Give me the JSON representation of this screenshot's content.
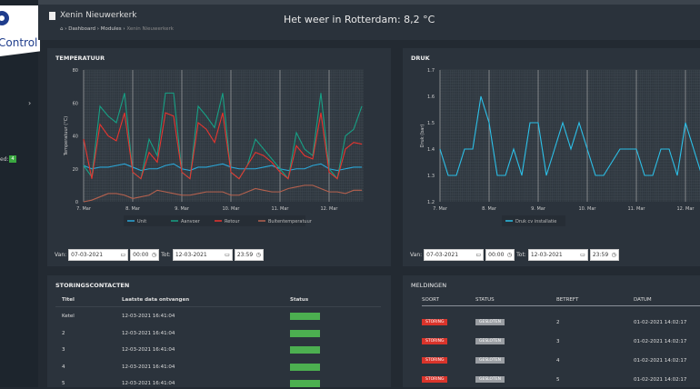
{
  "app": {
    "logo_text": "Control",
    "sidebar_badge": "4",
    "sidebar_label": "ed:"
  },
  "header": {
    "title": "Xenin Nieuwerkerk",
    "breadcrumb": [
      "Dashboard",
      "Modules",
      "Xenin Nieuwerkerk"
    ],
    "weather": "Het weer in Rotterdam: 8,2 °C"
  },
  "temp_panel": {
    "title": "TEMPERATUUR",
    "from_label": "Van:",
    "from_date": "07-03-2021",
    "from_time": "00:00",
    "to_label": "Tot:",
    "to_date": "12-03-2021",
    "to_time": "23:59"
  },
  "druk_panel": {
    "title": "DRUK",
    "from_label": "Van:",
    "from_date": "07-03-2021",
    "from_time": "00:00",
    "to_label": "Tot:",
    "to_date": "12-03-2021",
    "to_time": "23:59"
  },
  "storing": {
    "title": "STORINGSCONTACTEN",
    "headers": [
      "Titel",
      "Laatste data ontvangen",
      "Status"
    ],
    "rows": [
      {
        "titel": "Ketel",
        "date": "12-03-2021 16:41:04",
        "status": "ok"
      },
      {
        "titel": "2",
        "date": "12-03-2021 16:41:04",
        "status": "ok"
      },
      {
        "titel": "3",
        "date": "12-03-2021 16:41:04",
        "status": "ok"
      },
      {
        "titel": "4",
        "date": "12-03-2021 16:41:04",
        "status": "ok"
      },
      {
        "titel": "5",
        "date": "12-03-2021 16:41:04",
        "status": "ok"
      }
    ],
    "status_color": "#4caf50"
  },
  "meldingen": {
    "title": "MELDINGEN",
    "headers": [
      "SOORT",
      "STATUS",
      "BETREFT",
      "DATUM"
    ],
    "rows": [
      {
        "soort": "STORING",
        "status": "GESLOTEN",
        "betreft": "2",
        "datum": "01-02-2021 14:02:17"
      },
      {
        "soort": "STORING",
        "status": "GESLOTEN",
        "betreft": "3",
        "datum": "01-02-2021 14:02:17"
      },
      {
        "soort": "STORING",
        "status": "GESLOTEN",
        "betreft": "4",
        "datum": "01-02-2021 14:02:17"
      },
      {
        "soort": "STORING",
        "status": "GESLOTEN",
        "betreft": "5",
        "datum": "01-02-2021 14:02:17"
      }
    ]
  },
  "chart_data": [
    {
      "type": "line",
      "ylabel": "Temperatuur (°C)",
      "ylim": [
        0,
        80
      ],
      "yticks": [
        0,
        20,
        40,
        60,
        80
      ],
      "xticks": [
        "7. Mar",
        "8. Mar",
        "9. Mar",
        "10. Mar",
        "11. Mar",
        "12. Mar"
      ],
      "grid": true,
      "legend": "bottom",
      "x_start": "2021-03-07T00:00",
      "x_step_hours": 4,
      "series": [
        {
          "name": "Unit",
          "color": "#2aa7d8",
          "values": [
            22,
            20,
            21,
            21,
            22,
            23,
            21,
            19,
            20,
            20,
            22,
            23,
            20,
            19,
            21,
            21,
            22,
            23,
            21,
            20,
            20,
            20,
            21,
            22,
            20,
            19,
            20,
            20,
            22,
            23,
            20,
            19,
            20,
            21,
            21
          ]
        },
        {
          "name": "Aanvoer",
          "color": "#17a085",
          "values": [
            22,
            15,
            58,
            52,
            48,
            66,
            18,
            14,
            38,
            28,
            66,
            66,
            18,
            14,
            58,
            52,
            45,
            66,
            18,
            14,
            22,
            38,
            32,
            26,
            20,
            14,
            42,
            32,
            28,
            66,
            20,
            14,
            40,
            44,
            58
          ]
        },
        {
          "name": "Retour",
          "color": "#e8352f",
          "values": [
            38,
            14,
            47,
            40,
            37,
            54,
            18,
            14,
            30,
            24,
            54,
            52,
            18,
            14,
            48,
            44,
            36,
            54,
            18,
            14,
            22,
            30,
            28,
            24,
            18,
            14,
            34,
            28,
            26,
            54,
            18,
            14,
            32,
            36,
            35
          ]
        },
        {
          "name": "Buitentemperatuur",
          "color": "#b5614e",
          "values": [
            0,
            1,
            3,
            5,
            5,
            4,
            2,
            3,
            4,
            7,
            6,
            5,
            4,
            4,
            5,
            6,
            6,
            6,
            4,
            4,
            6,
            8,
            7,
            6,
            6,
            8,
            9,
            10,
            10,
            8,
            6,
            6,
            5,
            7,
            7
          ]
        }
      ]
    },
    {
      "type": "line",
      "ylabel": "Druk (bar)",
      "ylim": [
        1.2,
        1.7
      ],
      "yticks": [
        1.2,
        1.3,
        1.4,
        1.5,
        1.6,
        1.7
      ],
      "xticks": [
        "7. Mar",
        "8. Mar",
        "9. Mar",
        "10. Mar",
        "11. Mar",
        "12. Mar"
      ],
      "grid": true,
      "legend": "bottom",
      "x_start": "2021-03-07T00:00",
      "x_step_hours": 4,
      "series": [
        {
          "name": "Druk cv installatie",
          "color": "#2cc0e8",
          "values": [
            1.4,
            1.3,
            1.3,
            1.4,
            1.4,
            1.6,
            1.5,
            1.3,
            1.3,
            1.4,
            1.3,
            1.5,
            1.5,
            1.3,
            1.4,
            1.5,
            1.4,
            1.5,
            1.4,
            1.3,
            1.3,
            1.35,
            1.4,
            1.4,
            1.4,
            1.3,
            1.3,
            1.4,
            1.4,
            1.3,
            1.5,
            1.4,
            1.3,
            1.3,
            1.4
          ]
        }
      ]
    }
  ]
}
